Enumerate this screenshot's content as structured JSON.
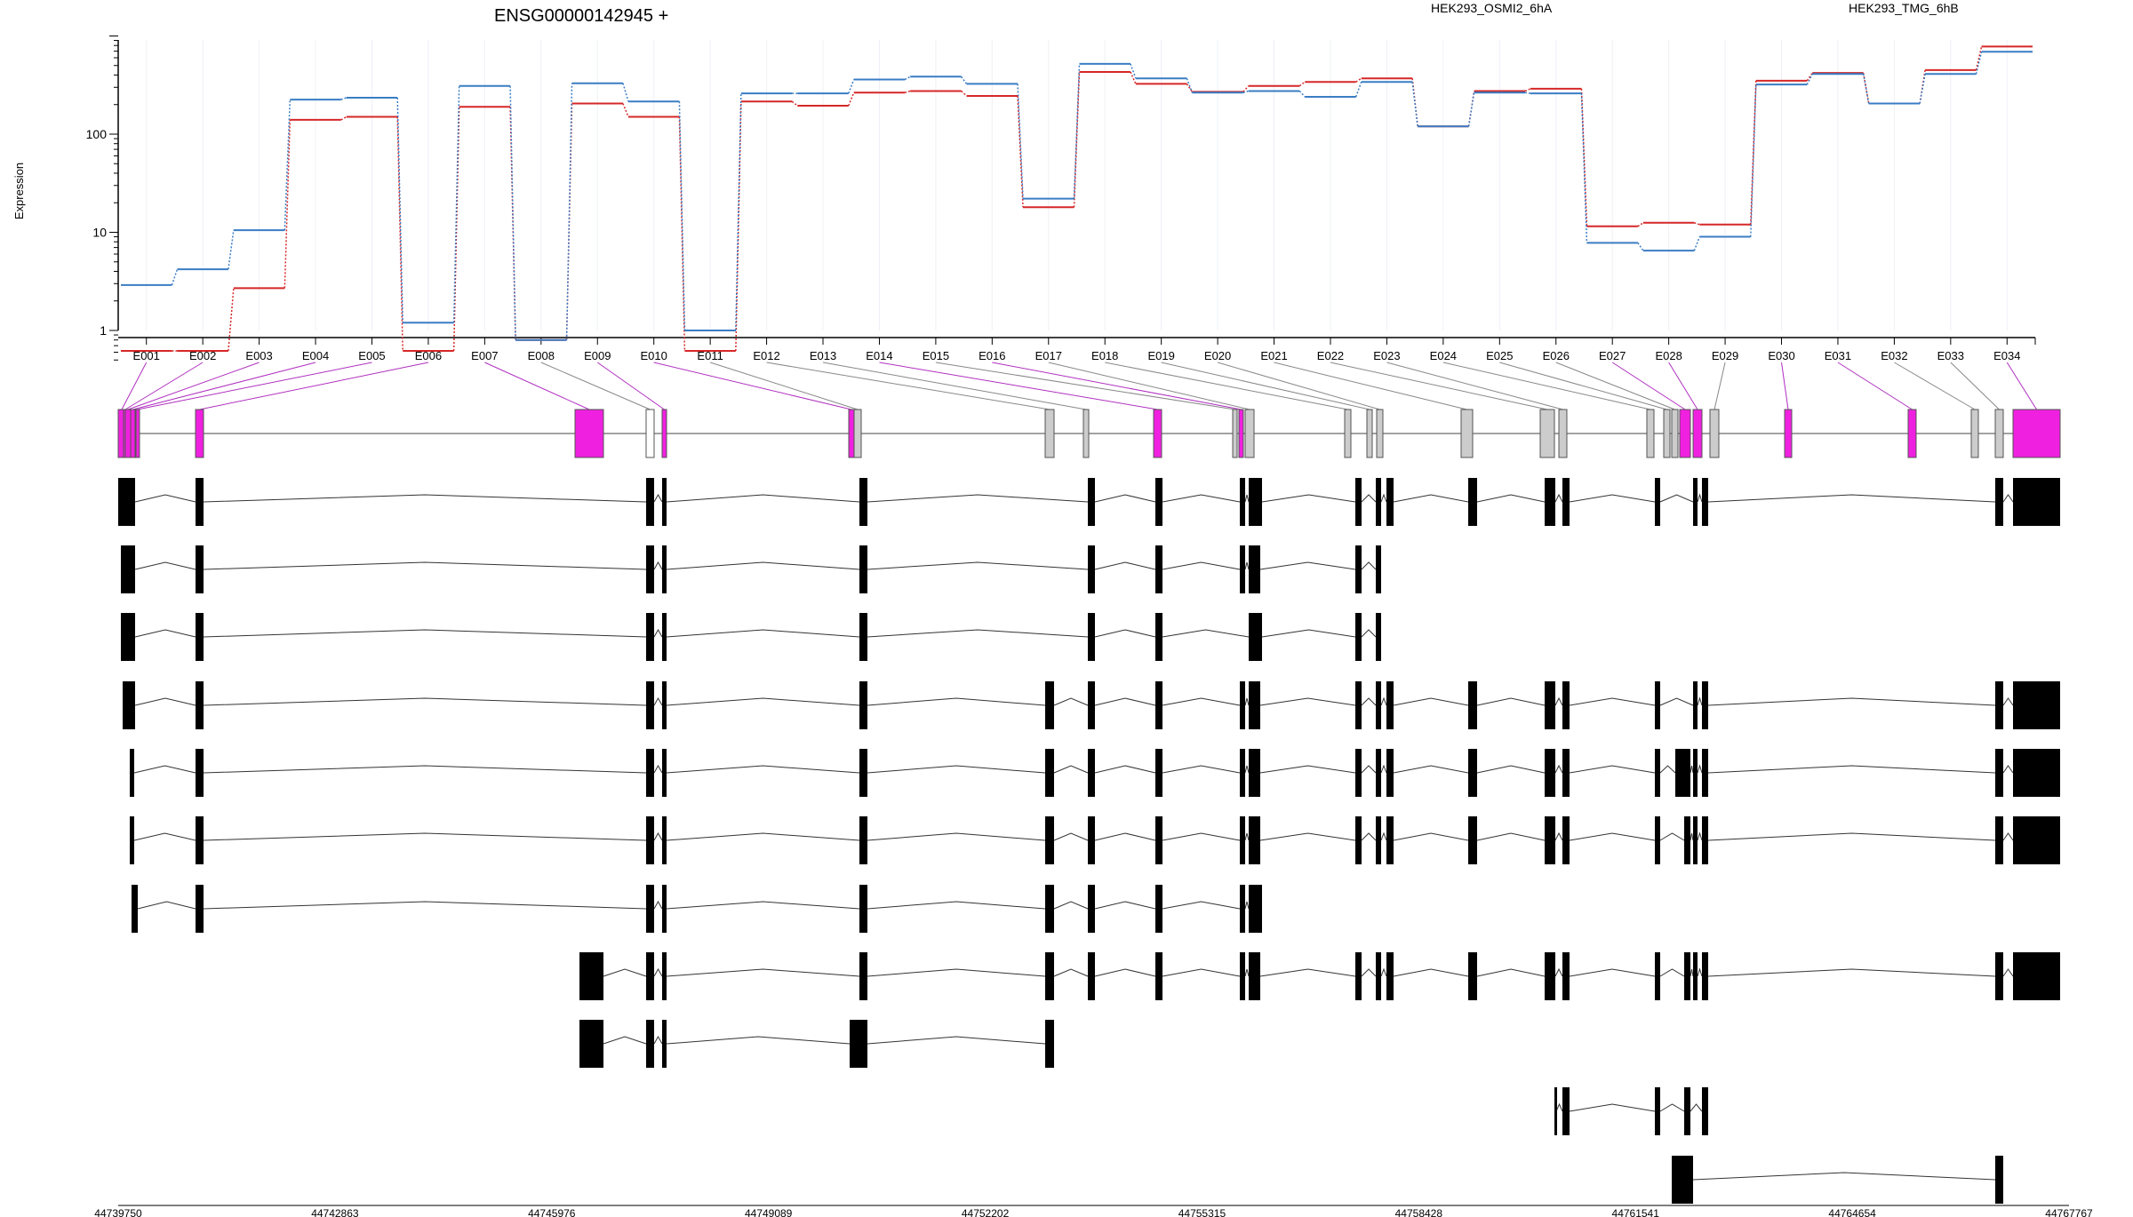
{
  "chart_data": {
    "type": "line",
    "title": "ENSG00000142945 +",
    "ylabel": "Expression",
    "y_scale": "log",
    "yticks": [
      1,
      10,
      100
    ],
    "ylim": [
      0.5,
      1000
    ],
    "exons": [
      "E001",
      "E002",
      "E003",
      "E004",
      "E005",
      "E006",
      "E007",
      "E008",
      "E009",
      "E010",
      "E011",
      "E012",
      "E013",
      "E014",
      "E015",
      "E016",
      "E017",
      "E018",
      "E019",
      "E020",
      "E021",
      "E022",
      "E023",
      "E024",
      "E025",
      "E026",
      "E027",
      "E028",
      "E029",
      "E030",
      "E031",
      "E032",
      "E033",
      "E034"
    ],
    "series": [
      {
        "name": "HEK293_OSMI2_6hA",
        "color": "#d62728",
        "values": [
          0.62,
          0.62,
          2.7,
          140,
          150,
          0.62,
          190,
          0.8,
          205,
          150,
          0.62,
          215,
          195,
          265,
          275,
          245,
          18,
          430,
          325,
          270,
          310,
          340,
          370,
          120,
          275,
          290,
          11.5,
          12.5,
          12,
          350,
          420,
          205,
          450,
          780
        ]
      },
      {
        "name": "HEK293_TMG_6hB",
        "color": "#3a7dc4",
        "values": [
          2.9,
          4.2,
          10.5,
          225,
          235,
          1.2,
          310,
          0.8,
          330,
          215,
          1.0,
          260,
          260,
          360,
          385,
          325,
          22,
          520,
          370,
          265,
          275,
          240,
          340,
          120,
          265,
          260,
          7.8,
          6.5,
          9,
          320,
          410,
          205,
          410,
          690
        ]
      }
    ],
    "genome_ticks": [
      "44739750",
      "44742863",
      "44745976",
      "44749089",
      "44752202",
      "44755315",
      "44758428",
      "44761541",
      "44764654",
      "44767767"
    ],
    "genome_range": [
      44739750,
      44767767
    ],
    "significant_exons": [
      "E001",
      "E002",
      "E003",
      "E004",
      "E005",
      "E006",
      "E007",
      "E009",
      "E010",
      "E014",
      "E016",
      "E027",
      "E028",
      "E030",
      "E031",
      "E034"
    ],
    "colors": {
      "significant": "#f020e0",
      "neutral": "#cccccc",
      "not_expressed": "#ffffff",
      "transcript": "#000000"
    }
  }
}
